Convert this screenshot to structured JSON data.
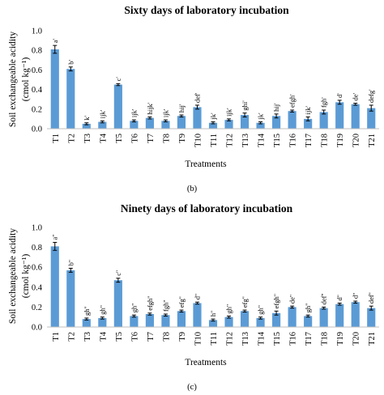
{
  "chart_data": [
    {
      "type": "bar",
      "title": "Sixty days of laboratory  incubation",
      "ylabel_line1": "Soil exchangeable acidity",
      "ylabel_line2": "(cmol kg⁻¹)",
      "xlabel": "Treatments",
      "caption": "(b)",
      "ylim": [
        0,
        1.0
      ],
      "yticks": [
        "0.0",
        "0.2",
        "0.4",
        "0.6",
        "0.8",
        "1.0"
      ],
      "categories": [
        "T1",
        "T2",
        "T3",
        "T4",
        "T5",
        "T6",
        "T7",
        "T8",
        "T9",
        "T10",
        "T11",
        "T12",
        "T13",
        "T14",
        "T15",
        "T16",
        "T17",
        "T18",
        "T19",
        "T20",
        "T21"
      ],
      "values": [
        0.81,
        0.61,
        0.05,
        0.07,
        0.45,
        0.08,
        0.11,
        0.08,
        0.13,
        0.22,
        0.06,
        0.09,
        0.14,
        0.06,
        0.13,
        0.18,
        0.1,
        0.17,
        0.27,
        0.25,
        0.21
      ],
      "errors": [
        0.04,
        0.02,
        0.01,
        0.01,
        0.01,
        0.01,
        0.01,
        0.01,
        0.01,
        0.02,
        0.01,
        0.01,
        0.02,
        0.01,
        0.02,
        0.01,
        0.02,
        0.02,
        0.02,
        0.01,
        0.03
      ],
      "letters": [
        "a'",
        "b'",
        "k'",
        "ijk'",
        "c'",
        "ijk'",
        "hijk'",
        "ijk'",
        "hij'",
        "def'",
        "jk'",
        "ijk'",
        "ghi'",
        "jk'",
        "hij'",
        "efgh'",
        "ijk'",
        "fgh'",
        "d'",
        "de'",
        "defg'"
      ],
      "bar_color": "#5B9BD5"
    },
    {
      "type": "bar",
      "title": "Ninety days of laboratory  incubation",
      "ylabel_line1": "Soil exchangeable acidity",
      "ylabel_line2": "(cmol kg⁻¹)",
      "xlabel": "Treatments",
      "caption": "(c)",
      "ylim": [
        0,
        1.0
      ],
      "yticks": [
        "0.0",
        "0.2",
        "0.4",
        "0.6",
        "0.8",
        "1.0"
      ],
      "categories": [
        "T1",
        "T2",
        "T3",
        "T4",
        "T5",
        "T6",
        "T7",
        "T8",
        "T9",
        "T10",
        "T11",
        "T12",
        "T13",
        "T14",
        "T15",
        "T16",
        "T17",
        "T18",
        "T19",
        "T20",
        "T21"
      ],
      "values": [
        0.81,
        0.57,
        0.08,
        0.09,
        0.47,
        0.11,
        0.13,
        0.12,
        0.16,
        0.24,
        0.07,
        0.1,
        0.16,
        0.09,
        0.14,
        0.2,
        0.11,
        0.19,
        0.23,
        0.25,
        0.19
      ],
      "errors": [
        0.04,
        0.02,
        0.01,
        0.01,
        0.02,
        0.01,
        0.01,
        0.01,
        0.01,
        0.01,
        0.01,
        0.01,
        0.01,
        0.01,
        0.02,
        0.01,
        0.01,
        0.01,
        0.01,
        0.01,
        0.02
      ],
      "letters": [
        "a''",
        "b''",
        "gh''",
        "gh''",
        "c''",
        "gh''",
        "efgh''",
        "fgh''",
        "efg''",
        "d''",
        "h''",
        "gh''",
        "efg''",
        "gh''",
        "efgh''",
        "de''",
        "gh''",
        "def''",
        "d''",
        "d''",
        "def''"
      ],
      "bar_color": "#5B9BD5"
    }
  ]
}
